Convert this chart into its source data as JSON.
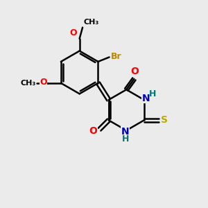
{
  "bg_color": "#ebebeb",
  "bond_color": "#000000",
  "line_width": 1.8,
  "atom_colors": {
    "O": "#ff0000",
    "N": "#0000bb",
    "S": "#bbaa00",
    "Br": "#bb8800",
    "H": "#007777",
    "C": "#000000"
  },
  "font_size": 10,
  "small_font_size": 9
}
